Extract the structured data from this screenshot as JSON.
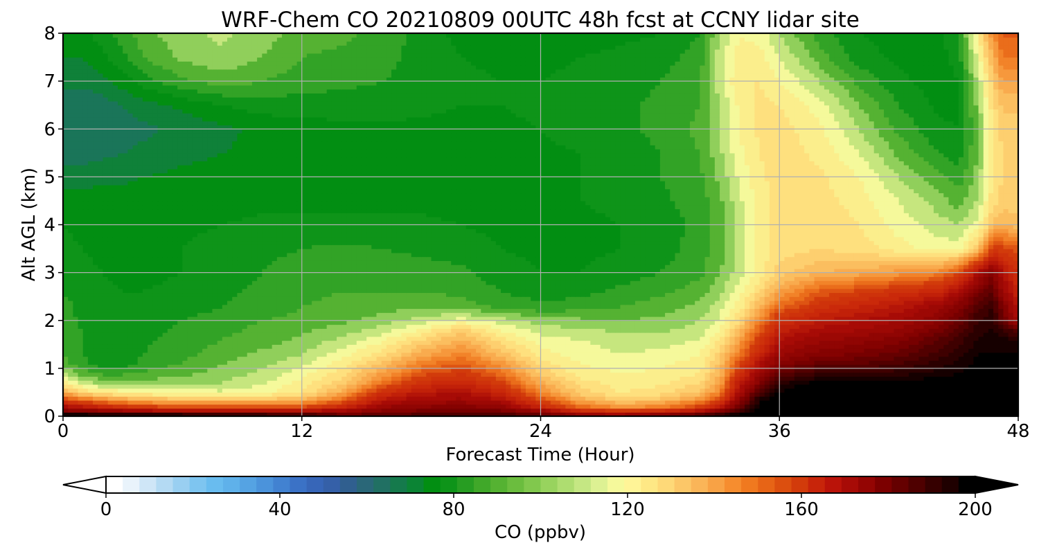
{
  "chart_data": {
    "type": "heatmap",
    "title": "WRF-Chem CO  20210809 00UTC 48h fcst at CCNY lidar site",
    "xlabel": "Forecast Time (Hour)",
    "ylabel": "Alt AGL (km)",
    "xlim": [
      0,
      48
    ],
    "ylim": [
      0,
      8
    ],
    "xticks": [
      0,
      12,
      24,
      36,
      48
    ],
    "yticks": [
      0,
      1,
      2,
      3,
      4,
      5,
      6,
      7,
      8
    ],
    "grid": true,
    "colorbar": {
      "label": "CO  (ppbv)",
      "range": [
        0,
        200
      ],
      "ticks": [
        0,
        40,
        80,
        120,
        160,
        200
      ],
      "extend": "both",
      "colors": [
        "#ffffff",
        "#e9f3fb",
        "#cfe6f7",
        "#b4daf3",
        "#99cff1",
        "#7ec5f0",
        "#69bcef",
        "#5fb1ea",
        "#55a3e3",
        "#4b93db",
        "#4282d1",
        "#3b72c6",
        "#3766b8",
        "#3560a8",
        "#305f8f",
        "#2a6778",
        "#217063",
        "#157a4c",
        "#0b8434",
        "#028e12",
        "#0e9419",
        "#279d22",
        "#40a829",
        "#55b232",
        "#6bbd3e",
        "#81c84d",
        "#98d35e",
        "#aedd70",
        "#c5e783",
        "#ddf193",
        "#f5f99b",
        "#fff497",
        "#fee885",
        "#fed978",
        "#fcc768",
        "#fab558",
        "#f8a245",
        "#f68d2f",
        "#f0791f",
        "#e76416",
        "#dc4f0f",
        "#d23b0b",
        "#c8250a",
        "#ba1309",
        "#a70b06",
        "#940503",
        "#7c0000",
        "#650000",
        "#4f0000",
        "#360000",
        "#1f0000",
        "#000000"
      ]
    },
    "color_stops": [
      [
        0,
        "#ffffff"
      ],
      [
        20,
        "#cfe6f7"
      ],
      [
        40,
        "#69bcef"
      ],
      [
        50,
        "#4282d1"
      ],
      [
        60,
        "#305f8f"
      ],
      [
        70,
        "#157a4c"
      ],
      [
        76,
        "#028e12"
      ],
      [
        80,
        "#0e9419"
      ],
      [
        88,
        "#55b232"
      ],
      [
        94,
        "#aedd70"
      ],
      [
        100,
        "#f5f99b"
      ],
      [
        106,
        "#fee885"
      ],
      [
        114,
        "#fcc768"
      ],
      [
        122,
        "#f8a245"
      ],
      [
        130,
        "#f0791f"
      ],
      [
        140,
        "#d23b0b"
      ],
      [
        150,
        "#c8250a"
      ],
      [
        160,
        "#a70b06"
      ],
      [
        175,
        "#7c0000"
      ],
      [
        190,
        "#360000"
      ],
      [
        200,
        "#000000"
      ]
    ],
    "x": [
      0,
      1,
      2,
      3,
      4,
      6,
      8,
      10,
      12,
      14,
      16,
      18,
      20,
      22,
      24,
      26,
      28,
      30,
      32,
      33,
      34,
      35,
      36,
      38,
      40,
      42,
      44,
      45,
      46,
      46.7,
      47.2,
      48
    ],
    "y": [
      0,
      0.1,
      0.2,
      0.35,
      0.5,
      0.7,
      0.9,
      1.1,
      1.3,
      1.6,
      1.8,
      2.0,
      2.3,
      2.6,
      3.0,
      3.5,
      4.0,
      4.5,
      5.0,
      5.5,
      6.0,
      6.5,
      7.0,
      7.5,
      8.0
    ],
    "values": [
      [
        210,
        210,
        210,
        210,
        210,
        210,
        210,
        205,
        202,
        185,
        185,
        188,
        190,
        190,
        185,
        175,
        172,
        180,
        195,
        200,
        205,
        210,
        215,
        215,
        215,
        215,
        215,
        215,
        215,
        215,
        215,
        215
      ],
      [
        175,
        172,
        170,
        168,
        165,
        162,
        160,
        160,
        160,
        165,
        172,
        176,
        178,
        176,
        168,
        150,
        145,
        150,
        160,
        172,
        190,
        205,
        212,
        215,
        215,
        215,
        215,
        215,
        215,
        215,
        215,
        215
      ],
      [
        160,
        155,
        150,
        145,
        140,
        138,
        137,
        138,
        138,
        148,
        165,
        170,
        172,
        168,
        150,
        132,
        125,
        128,
        140,
        155,
        180,
        200,
        210,
        215,
        215,
        215,
        215,
        215,
        215,
        215,
        215,
        215
      ],
      [
        140,
        132,
        126,
        122,
        118,
        116,
        114,
        115,
        118,
        132,
        155,
        162,
        163,
        158,
        138,
        120,
        112,
        115,
        125,
        140,
        168,
        195,
        205,
        212,
        212,
        212,
        212,
        212,
        213,
        213,
        213,
        213
      ],
      [
        120,
        110,
        106,
        104,
        102,
        100,
        99,
        101,
        106,
        120,
        145,
        155,
        158,
        150,
        128,
        112,
        106,
        108,
        115,
        128,
        160,
        185,
        198,
        208,
        208,
        208,
        208,
        208,
        210,
        210,
        210,
        210
      ],
      [
        105,
        96,
        92,
        92,
        92,
        92,
        94,
        97,
        104,
        112,
        130,
        145,
        150,
        140,
        120,
        108,
        104,
        105,
        110,
        122,
        155,
        172,
        192,
        200,
        200,
        200,
        202,
        203,
        205,
        205,
        205,
        205
      ],
      [
        94,
        88,
        85,
        85,
        87,
        89,
        92,
        95,
        100,
        108,
        122,
        136,
        142,
        132,
        113,
        104,
        102,
        103,
        106,
        118,
        145,
        165,
        182,
        190,
        190,
        192,
        196,
        198,
        202,
        202,
        202,
        202
      ],
      [
        88,
        83,
        80,
        80,
        83,
        86,
        90,
        93,
        97,
        104,
        115,
        128,
        135,
        124,
        108,
        102,
        100,
        101,
        104,
        115,
        138,
        158,
        172,
        180,
        182,
        186,
        192,
        195,
        200,
        200,
        200,
        200
      ],
      [
        86,
        82,
        79,
        79,
        82,
        85,
        88,
        91,
        94,
        100,
        108,
        120,
        128,
        116,
        104,
        100,
        98,
        99,
        102,
        112,
        130,
        150,
        165,
        172,
        175,
        180,
        188,
        192,
        198,
        198,
        198,
        198
      ],
      [
        85,
        82,
        80,
        79,
        81,
        84,
        86,
        88,
        91,
        95,
        101,
        110,
        119,
        108,
        100,
        98,
        96,
        96,
        98,
        106,
        122,
        142,
        158,
        165,
        168,
        172,
        182,
        188,
        195,
        195,
        195,
        195
      ],
      [
        84,
        82,
        80,
        79,
        80,
        83,
        85,
        87,
        89,
        92,
        96,
        103,
        112,
        102,
        96,
        95,
        93,
        93,
        96,
        102,
        116,
        135,
        152,
        160,
        162,
        166,
        176,
        184,
        192,
        195,
        192,
        180
      ],
      [
        84,
        81,
        80,
        79,
        80,
        82,
        84,
        86,
        87,
        89,
        92,
        96,
        100,
        96,
        92,
        91,
        90,
        91,
        94,
        99,
        110,
        128,
        146,
        154,
        158,
        162,
        170,
        178,
        190,
        192,
        180,
        160
      ],
      [
        83,
        81,
        80,
        79,
        79,
        80,
        82,
        84,
        86,
        87,
        88,
        89,
        88,
        85,
        83,
        84,
        86,
        88,
        91,
        96,
        104,
        118,
        132,
        144,
        150,
        155,
        164,
        172,
        184,
        190,
        175,
        155
      ],
      [
        82,
        80,
        79,
        78,
        78,
        79,
        81,
        83,
        85,
        86,
        86,
        86,
        85,
        82,
        80,
        81,
        83,
        85,
        88,
        93,
        100,
        110,
        122,
        135,
        140,
        145,
        150,
        160,
        176,
        182,
        165,
        150
      ],
      [
        80,
        79,
        78,
        77,
        77,
        78,
        80,
        82,
        84,
        85,
        85,
        84,
        83,
        80,
        78,
        78,
        80,
        82,
        85,
        90,
        96,
        104,
        112,
        118,
        120,
        124,
        128,
        138,
        160,
        172,
        158,
        145
      ],
      [
        79,
        78,
        77,
        77,
        77,
        78,
        80,
        81,
        82,
        83,
        82,
        81,
        80,
        78,
        77,
        77,
        78,
        80,
        84,
        88,
        95,
        103,
        108,
        110,
        108,
        104,
        100,
        100,
        115,
        140,
        140,
        135
      ],
      [
        78,
        77,
        77,
        77,
        77,
        77,
        78,
        79,
        79,
        79,
        79,
        79,
        78,
        77,
        77,
        77,
        78,
        80,
        83,
        88,
        95,
        103,
        108,
        110,
        106,
        100,
        96,
        94,
        100,
        115,
        118,
        115
      ],
      [
        76,
        76,
        76,
        76,
        76,
        76,
        76,
        77,
        77,
        77,
        77,
        77,
        76,
        76,
        77,
        78,
        79,
        81,
        84,
        89,
        97,
        104,
        108,
        108,
        104,
        98,
        92,
        88,
        95,
        108,
        112,
        112
      ],
      [
        72,
        72,
        73,
        73,
        74,
        75,
        75,
        76,
        76,
        76,
        76,
        76,
        76,
        76,
        77,
        78,
        80,
        82,
        85,
        91,
        99,
        105,
        108,
        107,
        102,
        94,
        87,
        84,
        92,
        106,
        110,
        110
      ],
      [
        68,
        68,
        69,
        70,
        71,
        73,
        74,
        75,
        76,
        76,
        76,
        76,
        76,
        76,
        77,
        78,
        80,
        82,
        86,
        93,
        101,
        106,
        108,
        105,
        98,
        89,
        82,
        80,
        90,
        105,
        110,
        110
      ],
      [
        66,
        66,
        67,
        68,
        69,
        71,
        73,
        75,
        76,
        77,
        77,
        77,
        77,
        77,
        78,
        80,
        81,
        83,
        87,
        94,
        102,
        107,
        108,
        103,
        94,
        85,
        79,
        78,
        90,
        105,
        112,
        112
      ],
      [
        67,
        67,
        68,
        70,
        72,
        75,
        78,
        80,
        80,
        80,
        80,
        79,
        78,
        78,
        79,
        80,
        81,
        83,
        86,
        94,
        103,
        107,
        106,
        100,
        90,
        82,
        77,
        77,
        92,
        108,
        115,
        115
      ],
      [
        71,
        71,
        73,
        76,
        80,
        85,
        88,
        86,
        84,
        83,
        82,
        80,
        79,
        78,
        78,
        79,
        80,
        82,
        86,
        96,
        106,
        106,
        102,
        94,
        85,
        79,
        76,
        78,
        95,
        112,
        122,
        122
      ],
      [
        74,
        74,
        77,
        81,
        86,
        91,
        93,
        90,
        86,
        85,
        84,
        80,
        78,
        77,
        77,
        78,
        79,
        80,
        84,
        96,
        104,
        104,
        98,
        88,
        80,
        77,
        76,
        80,
        100,
        118,
        130,
        130
      ],
      [
        76,
        77,
        80,
        84,
        88,
        93,
        95,
        92,
        88,
        87,
        85,
        80,
        77,
        75,
        75,
        76,
        77,
        78,
        82,
        94,
        102,
        100,
        94,
        84,
        78,
        76,
        77,
        82,
        105,
        125,
        135,
        135
      ]
    ]
  }
}
